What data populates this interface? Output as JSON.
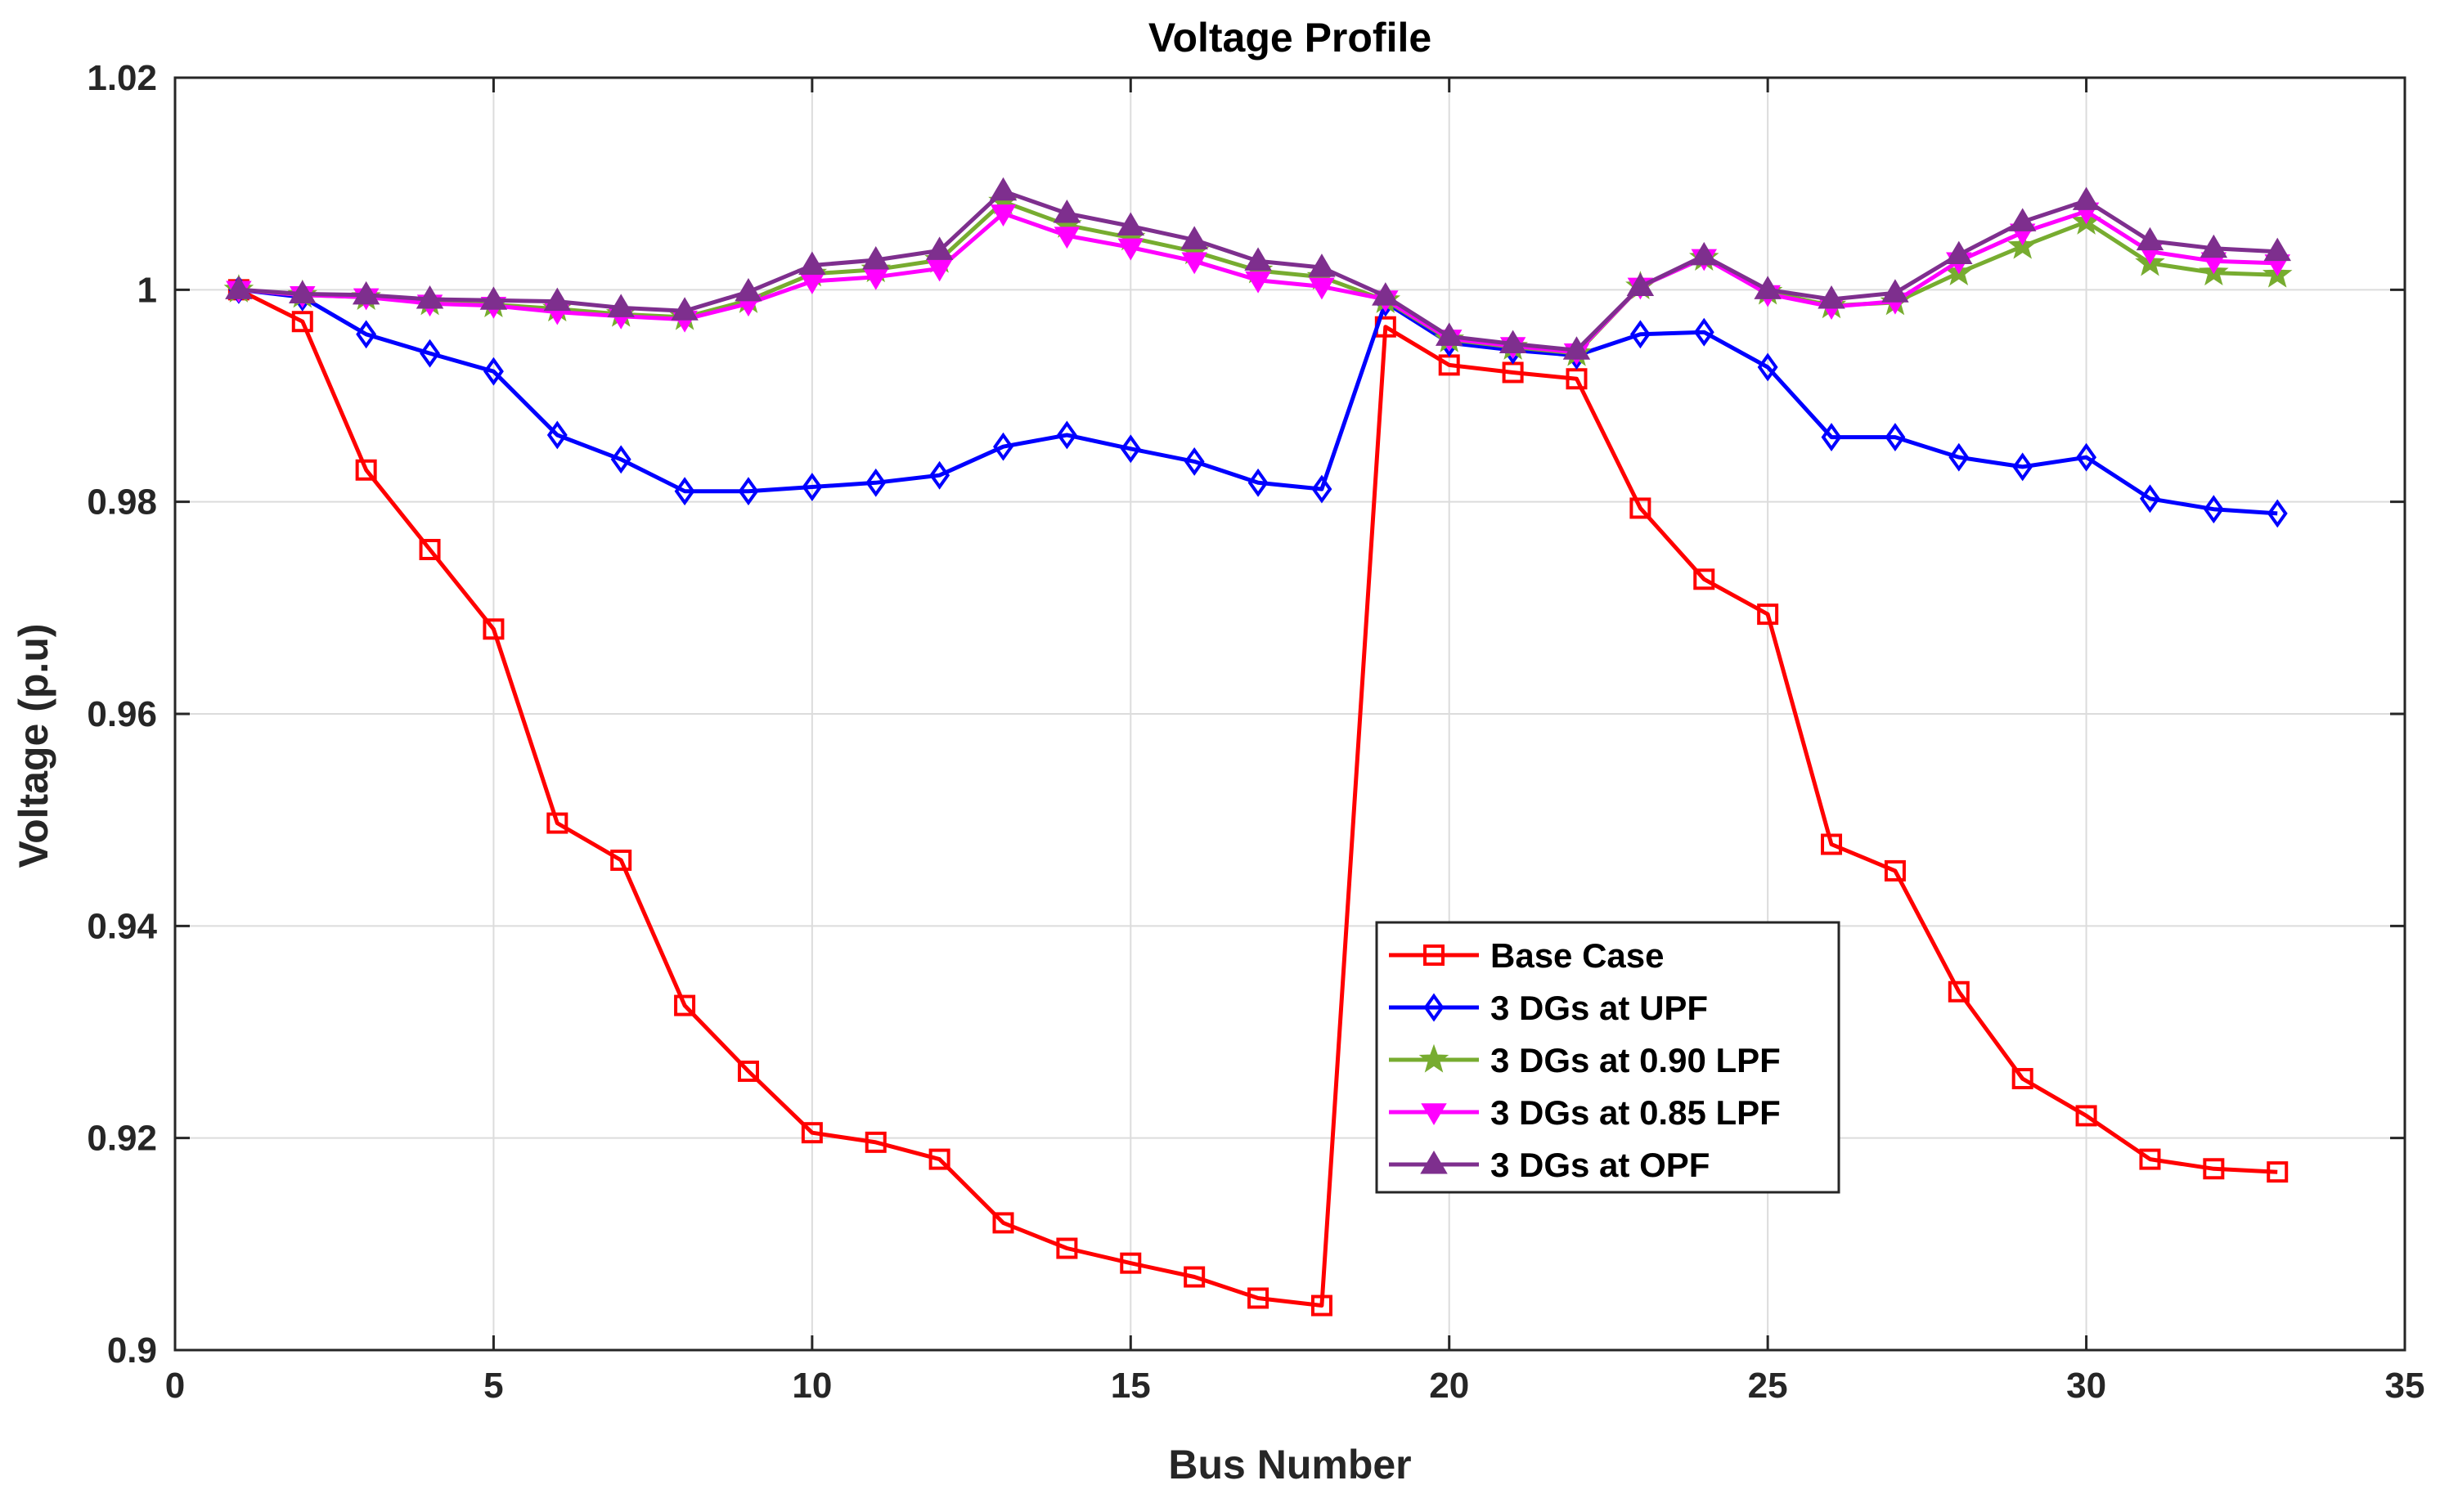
{
  "chart_data": {
    "type": "line",
    "title": "Voltage Profile",
    "xlabel": "Bus Number",
    "ylabel": "Voltage (p.u)",
    "xlim": [
      0,
      35
    ],
    "ylim": [
      0.9,
      1.02
    ],
    "xticks": [
      0,
      5,
      10,
      15,
      20,
      25,
      30,
      35
    ],
    "yticks": [
      0.9,
      0.92,
      0.94,
      0.96,
      0.98,
      1,
      1.02
    ],
    "xtick_labels": [
      "0",
      "5",
      "10",
      "15",
      "20",
      "25",
      "30",
      "35"
    ],
    "ytick_labels": [
      "0.9",
      "0.92",
      "0.94",
      "0.96",
      "0.98",
      "1",
      "1.02"
    ],
    "grid": true,
    "legend_position": "lower-center",
    "x": [
      1,
      2,
      3,
      4,
      5,
      6,
      7,
      8,
      9,
      10,
      11,
      12,
      13,
      14,
      15,
      16,
      17,
      18,
      19,
      20,
      21,
      22,
      23,
      24,
      25,
      26,
      27,
      28,
      29,
      30,
      31,
      32,
      33
    ],
    "series": [
      {
        "name": "Base Case",
        "color": "#ff0000",
        "marker": "square",
        "values": [
          1.0,
          0.997,
          0.983,
          0.9755,
          0.968,
          0.9497,
          0.9462,
          0.9325,
          0.9263,
          0.9205,
          0.9196,
          0.918,
          0.912,
          0.9096,
          0.9082,
          0.9069,
          0.9049,
          0.9042,
          0.9965,
          0.9929,
          0.9922,
          0.9916,
          0.9794,
          0.9727,
          0.9694,
          0.9477,
          0.9452,
          0.9338,
          0.9256,
          0.9221,
          0.918,
          0.9171,
          0.9168
        ]
      },
      {
        "name": "3 DGs at UPF",
        "color": "#0000ff",
        "marker": "diamond",
        "values": [
          1.0,
          0.9993,
          0.9958,
          0.994,
          0.9923,
          0.9863,
          0.984,
          0.981,
          0.981,
          0.9814,
          0.9818,
          0.9825,
          0.9852,
          0.9863,
          0.985,
          0.9838,
          0.9818,
          0.9812,
          0.9988,
          0.995,
          0.9943,
          0.9938,
          0.9958,
          0.996,
          0.9927,
          0.9861,
          0.9861,
          0.9842,
          0.9833,
          0.9842,
          0.9803,
          0.9793,
          0.9789
        ]
      },
      {
        "name": "3 DGs at 0.90 LPF",
        "color": "#77ac30",
        "marker": "star",
        "values": [
          1.0,
          0.9995,
          0.9993,
          0.9988,
          0.9986,
          0.9982,
          0.9977,
          0.9974,
          0.999,
          1.0015,
          1.0019,
          1.0028,
          1.0083,
          1.0061,
          1.0049,
          1.0036,
          1.0018,
          1.0012,
          0.999,
          0.9953,
          0.9946,
          0.994,
          1.0003,
          1.003,
          0.9998,
          0.9985,
          0.9988,
          1.0016,
          1.0041,
          1.0064,
          1.0025,
          1.0016,
          1.0014
        ]
      },
      {
        "name": "3 DGs at 0.85 LPF",
        "color": "#ff00ff",
        "marker": "triangle-down",
        "values": [
          1.0,
          0.9995,
          0.9993,
          0.9987,
          0.9985,
          0.9979,
          0.9975,
          0.9972,
          0.9987,
          1.0008,
          1.0012,
          1.002,
          1.0072,
          1.0051,
          1.004,
          1.0027,
          1.0009,
          1.0003,
          0.9991,
          0.9954,
          0.9947,
          0.9941,
          1.0003,
          1.003,
          0.9996,
          0.9984,
          0.9989,
          1.0027,
          1.0054,
          1.0074,
          1.0036,
          1.0027,
          1.0025
        ]
      },
      {
        "name": "3 DGs at OPF",
        "color": "#7e2f8e",
        "marker": "triangle-up",
        "values": [
          1.0,
          0.9996,
          0.9995,
          0.9991,
          0.999,
          0.9989,
          0.9983,
          0.998,
          0.9998,
          1.0023,
          1.0028,
          1.0037,
          1.0093,
          1.0072,
          1.006,
          1.0047,
          1.0027,
          1.0021,
          0.9994,
          0.9956,
          0.9949,
          0.9943,
          1.0003,
          1.0032,
          1.0,
          0.9991,
          0.9997,
          1.0033,
          1.0064,
          1.0084,
          1.0046,
          1.0039,
          1.0036
        ]
      }
    ]
  }
}
